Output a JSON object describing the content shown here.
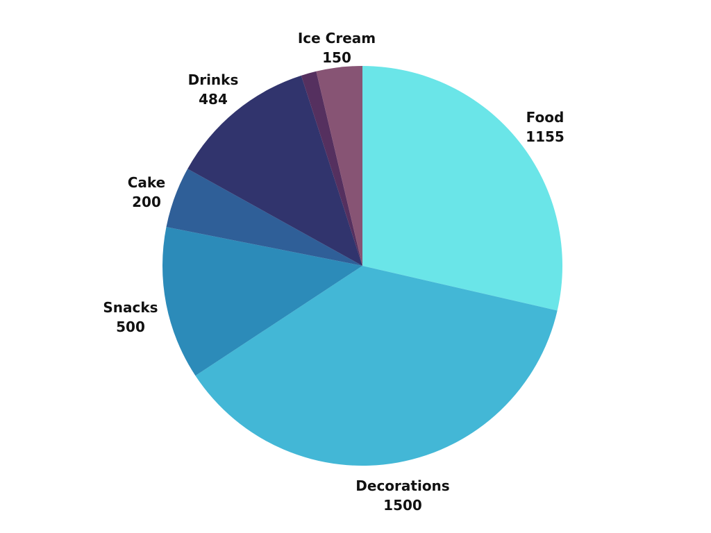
{
  "chart_data": {
    "type": "pie",
    "title": "",
    "series": [
      {
        "values": [
          {
            "label": "Food",
            "value": 1155,
            "color": "#6ae5e8"
          },
          {
            "label": "Decorations",
            "value": 1500,
            "color": "#43b7d6"
          },
          {
            "label": "Snacks",
            "value": 500,
            "color": "#2c8bb9"
          },
          {
            "label": "Cake",
            "value": 200,
            "color": "#2f5f98"
          },
          {
            "label": "Drinks",
            "value": 484,
            "color": "#31346d"
          },
          {
            "label": "",
            "value": 50,
            "color": "#55305f"
          },
          {
            "label": "Ice Cream",
            "value": 150,
            "color": "#875474"
          }
        ]
      }
    ],
    "start_angle": "12 o'clock",
    "direction": "clockwise",
    "legend": "none",
    "data_labels": "outside, label above value"
  }
}
